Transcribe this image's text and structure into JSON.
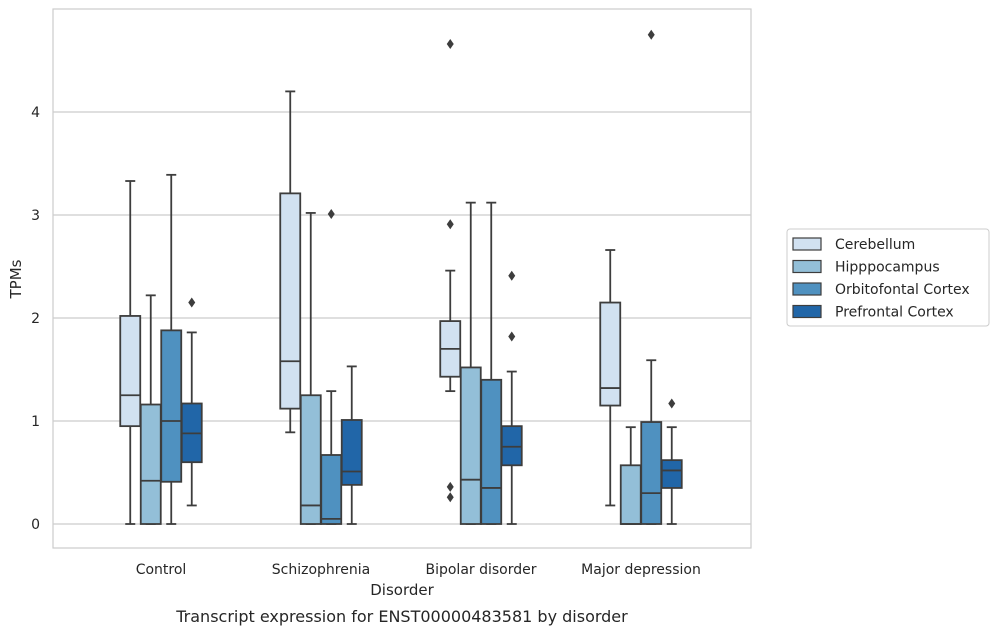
{
  "chart_data": {
    "type": "box",
    "caption": "Transcript expression for ENST00000483581 by disorder",
    "xlabel": "Disorder",
    "ylabel": "TPMs",
    "ylim": [
      -0.23,
      4.99
    ],
    "yticks": [
      0,
      1,
      2,
      3,
      4
    ],
    "grid": "horizontal",
    "legend_position": "right",
    "categories": [
      "Control",
      "Schizophrenia",
      "Bipolar disorder",
      "Major depression"
    ],
    "series": [
      {
        "name": "Cerebellum",
        "color": "#d1e1f1",
        "boxes": [
          {
            "whisker_low": 0.0,
            "q1": 0.95,
            "median": 1.25,
            "q3": 2.02,
            "whisker_high": 3.33,
            "outliers": []
          },
          {
            "whisker_low": 0.89,
            "q1": 1.12,
            "median": 1.58,
            "q3": 3.21,
            "whisker_high": 4.2,
            "outliers": []
          },
          {
            "whisker_low": 1.29,
            "q1": 1.43,
            "median": 1.7,
            "q3": 1.97,
            "whisker_high": 2.46,
            "outliers": [
              2.91,
              0.36,
              0.26,
              4.66
            ]
          },
          {
            "whisker_low": 0.18,
            "q1": 1.15,
            "median": 1.32,
            "q3": 2.15,
            "whisker_high": 2.66,
            "outliers": []
          }
        ]
      },
      {
        "name": "Hipppocampus",
        "color": "#93bfd8",
        "boxes": [
          {
            "whisker_low": 0.0,
            "q1": 0.0,
            "median": 0.42,
            "q3": 1.16,
            "whisker_high": 2.22,
            "outliers": []
          },
          {
            "whisker_low": 0.0,
            "q1": 0.0,
            "median": 0.18,
            "q3": 1.25,
            "whisker_high": 3.02,
            "outliers": []
          },
          {
            "whisker_low": 0.0,
            "q1": 0.0,
            "median": 0.43,
            "q3": 1.52,
            "whisker_high": 3.12,
            "outliers": []
          },
          {
            "whisker_low": 0.0,
            "q1": 0.0,
            "median": 0.0,
            "q3": 0.57,
            "whisker_high": 0.94,
            "outliers": []
          }
        ]
      },
      {
        "name": "Orbitofontal Cortex",
        "color": "#4f91c0",
        "boxes": [
          {
            "whisker_low": 0.0,
            "q1": 0.41,
            "median": 1.0,
            "q3": 1.88,
            "whisker_high": 3.39,
            "outliers": []
          },
          {
            "whisker_low": 0.0,
            "q1": 0.0,
            "median": 0.05,
            "q3": 0.67,
            "whisker_high": 1.29,
            "outliers": [
              3.01
            ]
          },
          {
            "whisker_low": 0.0,
            "q1": 0.0,
            "median": 0.35,
            "q3": 1.4,
            "whisker_high": 3.12,
            "outliers": []
          },
          {
            "whisker_low": 0.0,
            "q1": 0.0,
            "median": 0.3,
            "q3": 0.99,
            "whisker_high": 1.59,
            "outliers": [
              4.75
            ]
          }
        ]
      },
      {
        "name": "Prefrontal Cortex",
        "color": "#2166a8",
        "boxes": [
          {
            "whisker_low": 0.18,
            "q1": 0.6,
            "median": 0.88,
            "q3": 1.17,
            "whisker_high": 1.86,
            "outliers": [
              2.15
            ]
          },
          {
            "whisker_low": 0.0,
            "q1": 0.38,
            "median": 0.51,
            "q3": 1.01,
            "whisker_high": 1.53,
            "outliers": []
          },
          {
            "whisker_low": 0.0,
            "q1": 0.57,
            "median": 0.75,
            "q3": 0.95,
            "whisker_high": 1.48,
            "outliers": [
              2.41,
              1.82
            ]
          },
          {
            "whisker_low": 0.0,
            "q1": 0.35,
            "median": 0.52,
            "q3": 0.62,
            "whisker_high": 0.94,
            "outliers": [
              1.17
            ]
          }
        ]
      }
    ]
  }
}
